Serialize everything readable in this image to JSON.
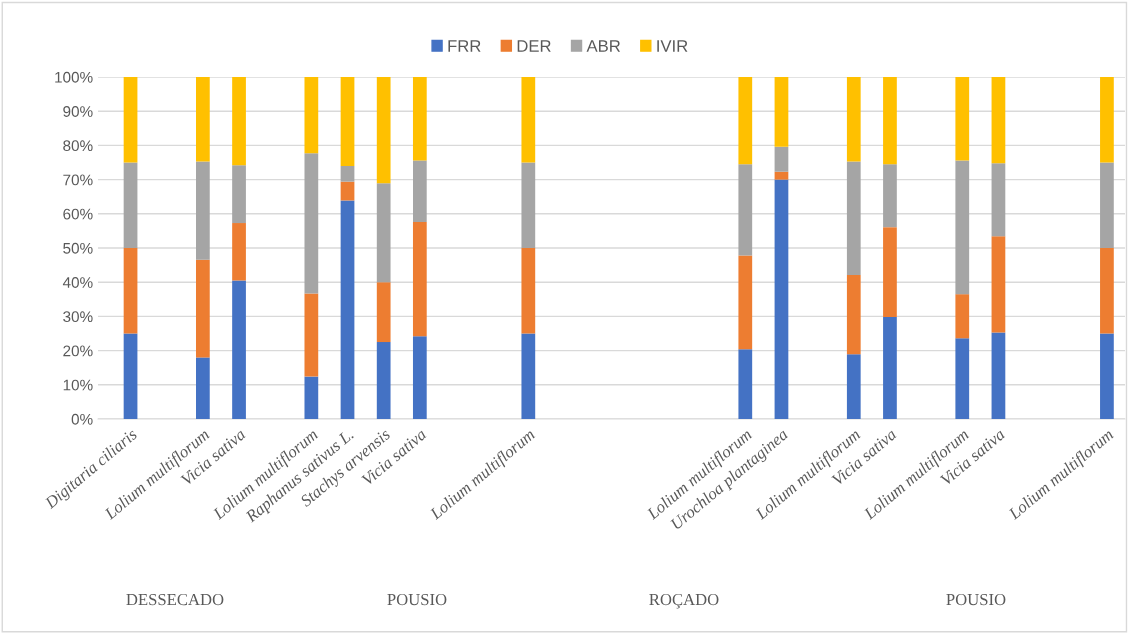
{
  "chart_data": {
    "type": "bar",
    "stacked": true,
    "categories": [
      "Digitaria ciliaris",
      null,
      "Lolium multiflorum",
      "Vicia sativa",
      null,
      "Lolium multiflorum",
      "Raphanus sativus L.",
      "Stachys arvensis",
      "Vicia sativa",
      null,
      null,
      "Lolium multiflorum",
      null,
      null,
      null,
      null,
      null,
      "Lolium multiflorum",
      "Urochloa plantaginea",
      null,
      "Lolium multiflorum",
      "Vicia sativa",
      null,
      "Lolium multiflorum",
      "Vicia sativa",
      null,
      null,
      "Lolium multiflorum"
    ],
    "series": [
      {
        "name": "FRR",
        "color": "#4472c4",
        "values": [
          25,
          null,
          18,
          40.5,
          null,
          12.4,
          63.9,
          22.5,
          24.2,
          null,
          null,
          25,
          null,
          null,
          null,
          null,
          null,
          20.4,
          70,
          null,
          18.9,
          29.8,
          null,
          23.6,
          25.3,
          null,
          null,
          25
        ]
      },
      {
        "name": "DER",
        "color": "#ed7d31",
        "values": [
          25,
          null,
          28.6,
          16.8,
          null,
          24.3,
          5.5,
          17.5,
          33.4,
          null,
          null,
          25,
          null,
          null,
          null,
          null,
          null,
          27.4,
          2.3,
          null,
          23.2,
          26.3,
          null,
          12.9,
          28.1,
          null,
          null,
          25
        ]
      },
      {
        "name": "ABR",
        "color": "#a5a5a5",
        "values": [
          25,
          null,
          28.7,
          16.9,
          null,
          41,
          4.6,
          28.9,
          18,
          null,
          null,
          25,
          null,
          null,
          null,
          null,
          null,
          26.7,
          7.3,
          null,
          33.2,
          18.4,
          null,
          39.1,
          21.4,
          null,
          null,
          25
        ]
      },
      {
        "name": "IVIR",
        "color": "#ffc000",
        "values": [
          25,
          null,
          24.7,
          25.8,
          null,
          22.3,
          26,
          31.1,
          24.4,
          null,
          null,
          25,
          null,
          null,
          null,
          null,
          null,
          25.5,
          20.4,
          null,
          24.7,
          25.5,
          null,
          24.4,
          25.2,
          null,
          null,
          25
        ]
      }
    ],
    "ylim": [
      0,
      100
    ],
    "yticks": [
      {
        "value": 0,
        "label": "0%"
      },
      {
        "value": 10,
        "label": "10%"
      },
      {
        "value": 20,
        "label": "20%"
      },
      {
        "value": 30,
        "label": "30%"
      },
      {
        "value": 40,
        "label": "40%"
      },
      {
        "value": 50,
        "label": "50%"
      },
      {
        "value": 60,
        "label": "60%"
      },
      {
        "value": 70,
        "label": "70%"
      },
      {
        "value": 80,
        "label": "80%"
      },
      {
        "value": 90,
        "label": "90%"
      },
      {
        "value": 100,
        "label": "100%"
      }
    ],
    "grid": "y",
    "legend": "top",
    "annotations": [
      "DESSECADO",
      "POUSIO",
      "ROÇADO",
      "POUSIO"
    ]
  }
}
